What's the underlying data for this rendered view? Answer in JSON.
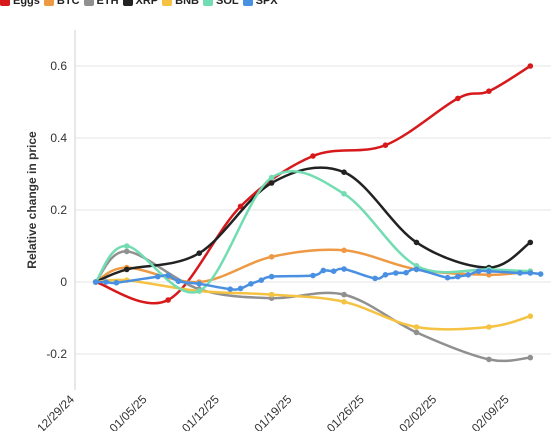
{
  "chart_data": {
    "type": "line",
    "title": "",
    "xlabel": "",
    "ylabel": "Relative change in price",
    "ylim": [
      -0.3,
      0.7
    ],
    "xlim": [
      "2024-12-29",
      "2025-02-13"
    ],
    "legend_position": "top-left",
    "grid": {
      "y": true,
      "x": false
    },
    "y_ticks": [
      {
        "value": 0.6,
        "label": "0.6"
      },
      {
        "value": 0.4,
        "label": "0.4"
      },
      {
        "value": 0.2,
        "label": "0.2"
      },
      {
        "value": 0,
        "label": "0"
      },
      {
        "value": -0.2,
        "label": "-0.2"
      }
    ],
    "x_ticks": [
      {
        "date": "2024-12-29",
        "label": "12/29/24"
      },
      {
        "date": "2025-01-05",
        "label": "01/05/25"
      },
      {
        "date": "2025-01-12",
        "label": "01/12/25"
      },
      {
        "date": "2025-01-19",
        "label": "01/19/25"
      },
      {
        "date": "2025-01-26",
        "label": "01/26/25"
      },
      {
        "date": "2025-02-02",
        "label": "02/02/25"
      },
      {
        "date": "2025-02-09",
        "label": "02/09/25"
      }
    ],
    "series": [
      {
        "name": "Eggs",
        "color": "#d7191c",
        "points": [
          [
            "2024-12-31",
            0.0
          ],
          [
            "2025-01-07",
            -0.05
          ],
          [
            "2025-01-14",
            0.21
          ],
          [
            "2025-01-21",
            0.35
          ],
          [
            "2025-01-28",
            0.38
          ],
          [
            "2025-02-04",
            0.51
          ],
          [
            "2025-02-07",
            0.53
          ],
          [
            "2025-02-11",
            0.6
          ]
        ]
      },
      {
        "name": "BTC",
        "color": "#ee9a45",
        "points": [
          [
            "2024-12-31",
            0.0
          ],
          [
            "2025-01-03",
            0.04
          ],
          [
            "2025-01-10",
            0.0
          ],
          [
            "2025-01-17",
            0.07
          ],
          [
            "2025-01-24",
            0.088
          ],
          [
            "2025-01-31",
            0.035
          ],
          [
            "2025-02-07",
            0.02
          ],
          [
            "2025-02-11",
            0.03
          ]
        ]
      },
      {
        "name": "ETH",
        "color": "#909090",
        "points": [
          [
            "2024-12-31",
            0.0
          ],
          [
            "2025-01-03",
            0.085
          ],
          [
            "2025-01-10",
            -0.02
          ],
          [
            "2025-01-17",
            -0.045
          ],
          [
            "2025-01-24",
            -0.035
          ],
          [
            "2025-01-31",
            -0.14
          ],
          [
            "2025-02-07",
            -0.215
          ],
          [
            "2025-02-11",
            -0.21
          ]
        ]
      },
      {
        "name": "XRP",
        "color": "#222222",
        "points": [
          [
            "2024-12-31",
            0.0
          ],
          [
            "2025-01-03",
            0.035
          ],
          [
            "2025-01-10",
            0.08
          ],
          [
            "2025-01-17",
            0.275
          ],
          [
            "2025-01-24",
            0.305
          ],
          [
            "2025-01-31",
            0.11
          ],
          [
            "2025-02-07",
            0.04
          ],
          [
            "2025-02-11",
            0.11
          ]
        ]
      },
      {
        "name": "BNB",
        "color": "#f5c242",
        "points": [
          [
            "2024-12-31",
            0.0
          ],
          [
            "2025-01-03",
            0.005
          ],
          [
            "2025-01-10",
            -0.025
          ],
          [
            "2025-01-17",
            -0.035
          ],
          [
            "2025-01-24",
            -0.055
          ],
          [
            "2025-01-31",
            -0.125
          ],
          [
            "2025-02-07",
            -0.125
          ],
          [
            "2025-02-11",
            -0.095
          ]
        ]
      },
      {
        "name": "SOL",
        "color": "#72dcb2",
        "points": [
          [
            "2024-12-31",
            0.0
          ],
          [
            "2025-01-03",
            0.1
          ],
          [
            "2025-01-10",
            -0.025
          ],
          [
            "2025-01-17",
            0.29
          ],
          [
            "2025-01-24",
            0.245
          ],
          [
            "2025-01-31",
            0.045
          ],
          [
            "2025-02-07",
            0.035
          ],
          [
            "2025-02-11",
            0.03
          ]
        ]
      },
      {
        "name": "SPX",
        "color": "#4a90e2",
        "points": [
          [
            "2024-12-31",
            0.0
          ],
          [
            "2025-01-01",
            0.0
          ],
          [
            "2025-01-02",
            -0.002
          ],
          [
            "2025-01-06",
            0.015
          ],
          [
            "2025-01-07",
            0.018
          ],
          [
            "2025-01-08",
            0.002
          ],
          [
            "2025-01-10",
            -0.005
          ],
          [
            "2025-01-13",
            -0.02
          ],
          [
            "2025-01-14",
            -0.018
          ],
          [
            "2025-01-15",
            -0.005
          ],
          [
            "2025-01-16",
            0.005
          ],
          [
            "2025-01-17",
            0.015
          ],
          [
            "2025-01-21",
            0.018
          ],
          [
            "2025-01-22",
            0.032
          ],
          [
            "2025-01-23",
            0.03
          ],
          [
            "2025-01-24",
            0.036
          ],
          [
            "2025-01-27",
            0.01
          ],
          [
            "2025-01-28",
            0.02
          ],
          [
            "2025-01-29",
            0.025
          ],
          [
            "2025-01-30",
            0.026
          ],
          [
            "2025-01-31",
            0.035
          ],
          [
            "2025-02-03",
            0.012
          ],
          [
            "2025-02-04",
            0.015
          ],
          [
            "2025-02-05",
            0.02
          ],
          [
            "2025-02-06",
            0.03
          ],
          [
            "2025-02-07",
            0.03
          ],
          [
            "2025-02-10",
            0.025
          ],
          [
            "2025-02-11",
            0.025
          ],
          [
            "2025-02-12",
            0.022
          ]
        ]
      }
    ]
  }
}
